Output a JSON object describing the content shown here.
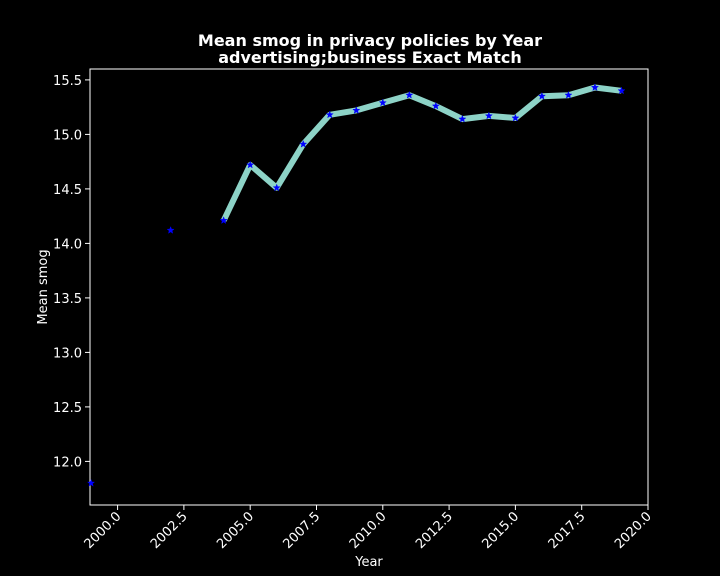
{
  "chart_data": {
    "type": "line",
    "title_line1": "Mean smog in privacy policies by Year",
    "title_line2": "advertising;business Exact Match",
    "xlabel": "Year",
    "ylabel": "Mean smog",
    "xlim": [
      1998.96,
      2020.0
    ],
    "ylim": [
      11.6,
      15.6
    ],
    "xticks": [
      2000.0,
      2002.5,
      2005.0,
      2007.5,
      2010.0,
      2012.5,
      2015.0,
      2017.5,
      2020.0
    ],
    "xtick_labels": [
      "2000.0",
      "2002.5",
      "2005.0",
      "2007.5",
      "2010.0",
      "2012.5",
      "2015.0",
      "2017.5",
      "2020.0"
    ],
    "yticks": [
      12.0,
      12.5,
      13.0,
      13.5,
      14.0,
      14.5,
      15.0,
      15.5
    ],
    "ytick_labels": [
      "12.0",
      "12.5",
      "13.0",
      "13.5",
      "14.0",
      "14.5",
      "15.0",
      "15.5"
    ],
    "line_color": "#8dd3c7",
    "marker_color": "#0000ff",
    "background": "#000000",
    "series": [
      {
        "x": [
          1999,
          2002,
          2004,
          2005,
          2006,
          2007,
          2008,
          2009,
          2010,
          2011,
          2012,
          2013,
          2014,
          2015,
          2016,
          2017,
          2018,
          2019
        ],
        "y": [
          11.8,
          14.12,
          14.21,
          14.72,
          14.51,
          14.91,
          15.18,
          15.22,
          15.29,
          15.36,
          15.26,
          15.14,
          15.17,
          15.15,
          15.35,
          15.36,
          15.43,
          15.4
        ],
        "line_segments": [
          [
            2004,
            2019
          ]
        ]
      }
    ]
  }
}
